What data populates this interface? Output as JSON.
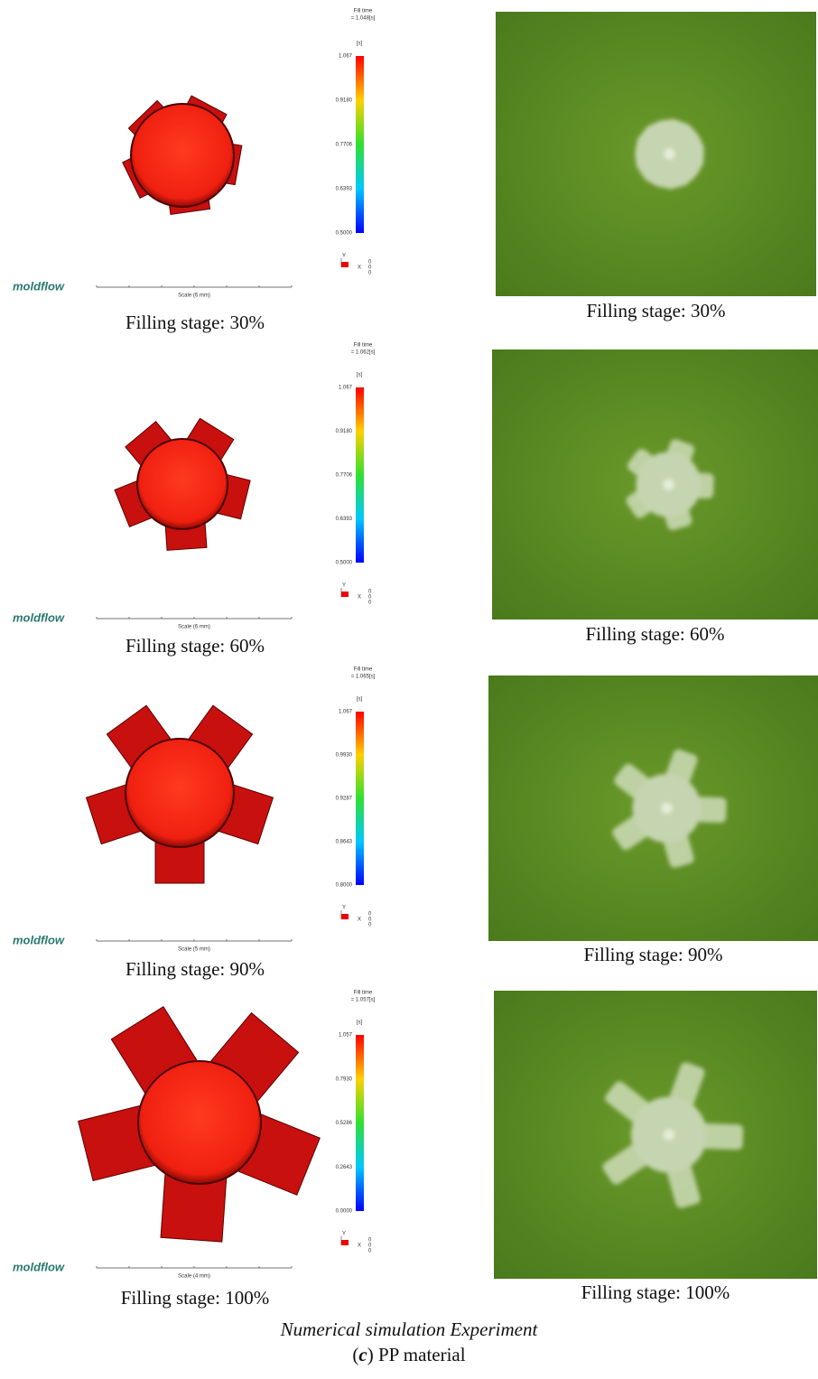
{
  "panels": [
    {
      "simulation": {
        "fill_time_label": "Fill time",
        "fill_time_value": "= 1.048[s]",
        "unit": "[s]",
        "ticks": [
          "1.067",
          "0.9180",
          "0.7706",
          "0.6393",
          "0.5000"
        ],
        "scale": "Scale (6 mm)",
        "logo": "moldflow",
        "axes": [
          "Y",
          "X",
          "0",
          "0",
          "0"
        ]
      },
      "caption": "Filling stage: 30%",
      "photo_caption": "Filling stage: 30%"
    },
    {
      "simulation": {
        "fill_time_label": "Fill time",
        "fill_time_value": "= 1.062[s]",
        "unit": "[s]",
        "ticks": [
          "1.067",
          "0.9180",
          "0.7706",
          "0.6393",
          "0.5000"
        ],
        "scale": "Scale (6 mm)",
        "logo": "moldflow",
        "axes": [
          "Y",
          "X",
          "0",
          "0",
          "0"
        ]
      },
      "caption": "Filling stage: 60%",
      "photo_caption": "Filling stage: 60%"
    },
    {
      "simulation": {
        "fill_time_label": "Fill time",
        "fill_time_value": "= 1.065[s]",
        "unit": "[s]",
        "ticks": [
          "1.067",
          "0.9930",
          "0.9287",
          "0.8643",
          "0.8000"
        ],
        "scale": "Scale (5 mm)",
        "logo": "moldflow",
        "axes": [
          "Y",
          "X",
          "0",
          "0",
          "0"
        ]
      },
      "caption": "Filling stage: 90%",
      "photo_caption": "Filling stage: 90%"
    },
    {
      "simulation": {
        "fill_time_label": "Fill time",
        "fill_time_value": "= 1.057[s]",
        "unit": "[s]",
        "ticks": [
          "1.057",
          "0.7930",
          "0.5286",
          "0.2643",
          "0.0000"
        ],
        "scale": "Scale (4 mm)",
        "logo": "moldflow",
        "axes": [
          "Y",
          "X",
          "0",
          "0",
          "0"
        ]
      },
      "caption": "Filling stage: 100%",
      "photo_caption": "Filling stage: 100%"
    }
  ],
  "footer": {
    "columns": [
      "Numerical simulation",
      "Experiment"
    ],
    "caption": [
      "(",
      "c",
      ") PP material"
    ]
  }
}
